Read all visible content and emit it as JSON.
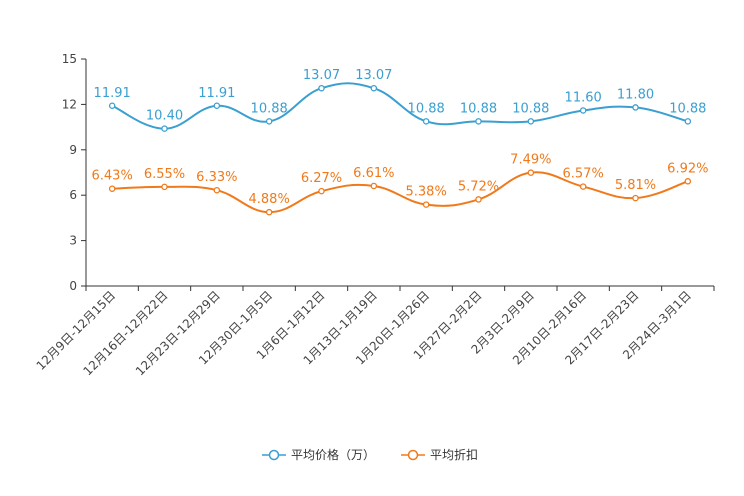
{
  "chart_data": {
    "type": "line",
    "categories": [
      "12月9日-12月15日",
      "12月16日-12月22日",
      "12月23日-12月29日",
      "12月30日-1月5日",
      "1月6日-1月12日",
      "1月13日-1月19日",
      "1月20日-1月26日",
      "1月27日-2月2日",
      "2月3日-2月9日",
      "2月10日-2月16日",
      "2月17日-2月23日",
      "2月24日-3月1日"
    ],
    "ylim": [
      0,
      15
    ],
    "yticks": [
      0,
      3,
      6,
      9,
      12,
      15
    ],
    "series": [
      {
        "name": "平均价格（万）",
        "color": "#3a9fd1",
        "values": [
          11.91,
          10.4,
          11.91,
          10.88,
          13.07,
          13.07,
          10.88,
          10.88,
          10.88,
          11.6,
          11.8,
          10.88
        ],
        "labels": [
          "11.91",
          "10.40",
          "11.91",
          "10.88",
          "13.07",
          "13.07",
          "10.88",
          "10.88",
          "10.88",
          "11.60",
          "11.80",
          "10.88"
        ]
      },
      {
        "name": "平均折扣",
        "color": "#f07a1b",
        "values": [
          6.43,
          6.55,
          6.33,
          4.88,
          6.27,
          6.61,
          5.38,
          5.72,
          7.49,
          6.57,
          5.81,
          6.92
        ],
        "labels": [
          "6.43%",
          "6.55%",
          "6.33%",
          "4.88%",
          "6.27%",
          "6.61%",
          "5.38%",
          "5.72%",
          "7.49%",
          "6.57%",
          "5.81%",
          "6.92%"
        ]
      }
    ],
    "legend_position": "bottom-center",
    "grid": false
  }
}
